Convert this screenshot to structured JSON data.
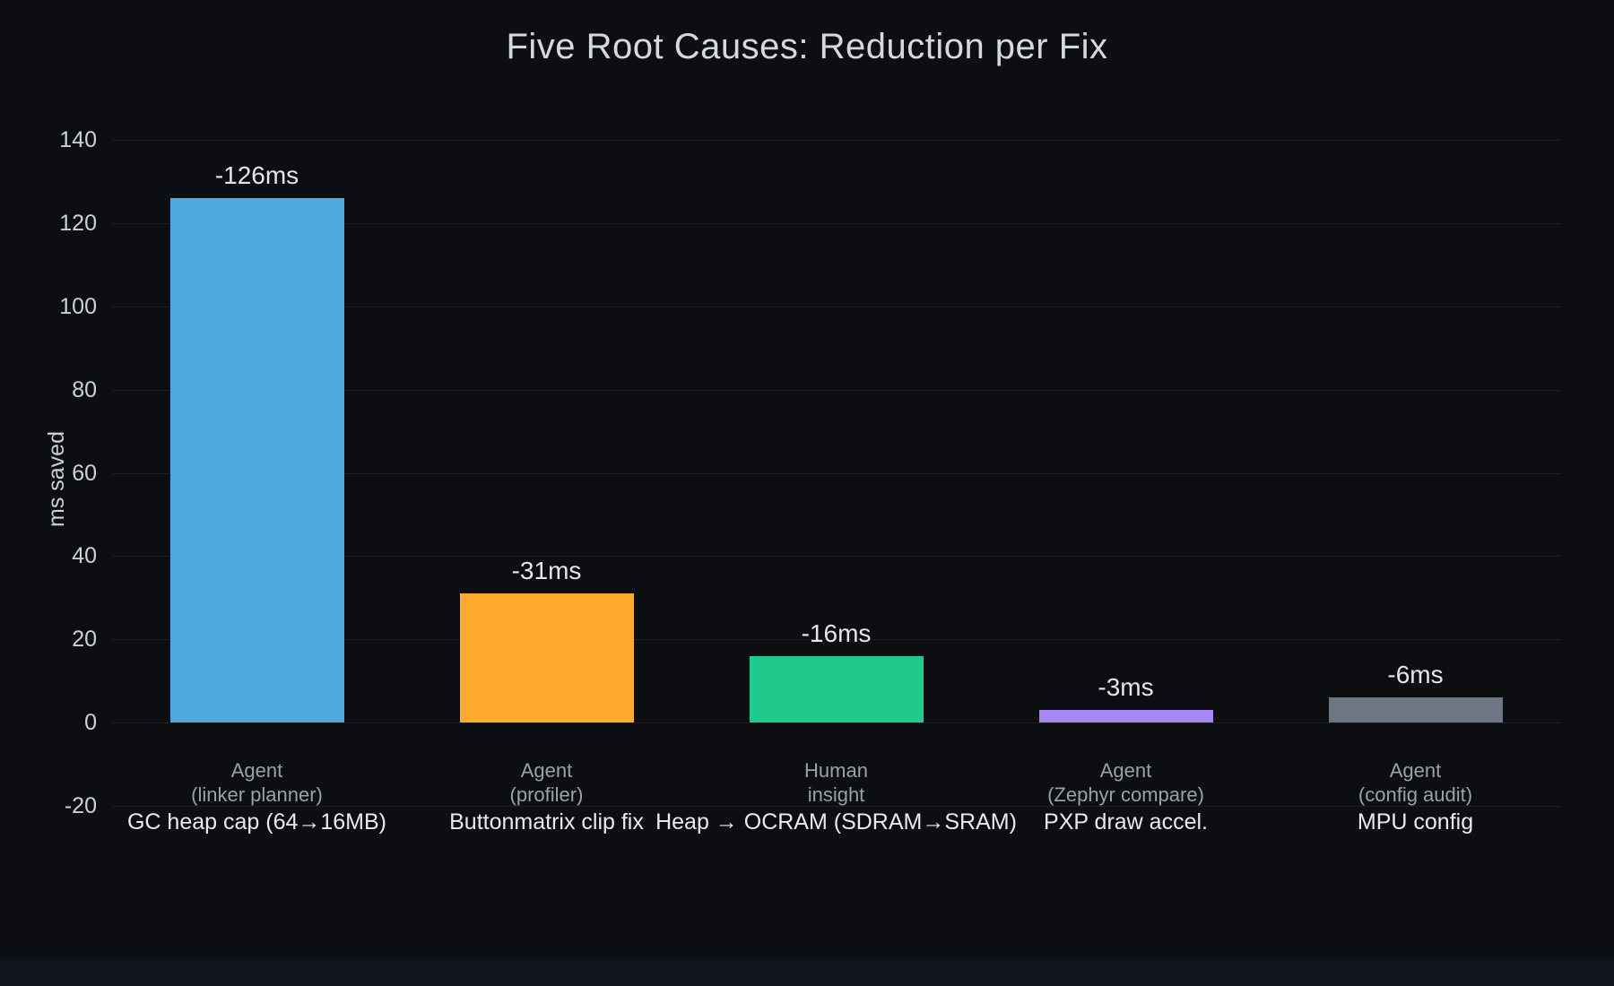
{
  "page": {
    "background": "#0d0e12",
    "bottom_strip_color": "#10141d"
  },
  "chart_data": {
    "type": "bar",
    "title": "Five Root Causes: Reduction per Fix",
    "xlabel": "",
    "ylabel": "ms saved",
    "ylim": [
      -20,
      140
    ],
    "yticks": [
      140,
      120,
      100,
      80,
      60,
      40,
      20,
      0,
      -20
    ],
    "grid": true,
    "legend": false,
    "background": "#0d0e12",
    "gridline_color": "rgba(255,255,255,0.08)",
    "bars": [
      {
        "value": 126,
        "value_label": "-126ms",
        "category_lines": [
          "Agent",
          "(linker planner)"
        ],
        "sublabel": "GC heap cap (64→16MB)",
        "color": "#4fa8e0"
      },
      {
        "value": 31,
        "value_label": "-31ms",
        "category_lines": [
          "Agent",
          "(profiler)"
        ],
        "sublabel": "Buttonmatrix clip fix",
        "color": "#fdaa2e"
      },
      {
        "value": 16,
        "value_label": "-16ms",
        "category_lines": [
          "Human",
          "insight"
        ],
        "sublabel": "Heap → OCRAM (SDRAM→SRAM)",
        "color": "#20c98c"
      },
      {
        "value": 3,
        "value_label": "-3ms",
        "category_lines": [
          "Agent",
          "(Zephyr compare)"
        ],
        "sublabel": "PXP draw accel.",
        "color": "#a687f3"
      },
      {
        "value": 6,
        "value_label": "-6ms",
        "category_lines": [
          "Agent",
          "(config audit)"
        ],
        "sublabel": "MPU config",
        "color": "#6e7683"
      }
    ]
  }
}
